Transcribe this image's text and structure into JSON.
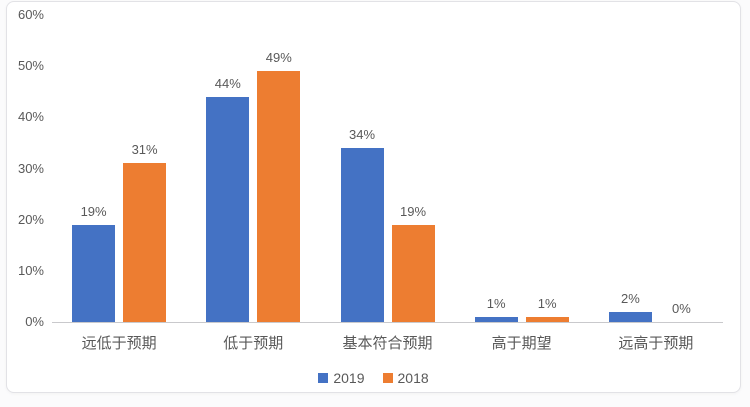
{
  "chart_data": {
    "type": "bar",
    "title": "",
    "xlabel": "",
    "ylabel": "",
    "categories": [
      "远低于预期",
      "低于预期",
      "基本符合预期",
      "高于期望",
      "远高于预期"
    ],
    "series": [
      {
        "name": "2019",
        "color": "#4472C4",
        "values": [
          19,
          44,
          34,
          1,
          2
        ]
      },
      {
        "name": "2018",
        "color": "#ED7D31",
        "values": [
          31,
          49,
          19,
          1,
          0
        ]
      }
    ],
    "value_suffix": "%",
    "yticks": [
      "0%",
      "10%",
      "20%",
      "30%",
      "40%",
      "50%",
      "60%"
    ],
    "ylim": [
      0,
      60
    ],
    "grid": false,
    "legend_position": "bottom"
  },
  "colors": {
    "text": "#595959",
    "axis_line": "#c9c9cc",
    "card_background": "#ffffff",
    "card_border": "#e2e2e6",
    "series_2019": "#4472C4",
    "series_2018": "#ED7D31"
  }
}
